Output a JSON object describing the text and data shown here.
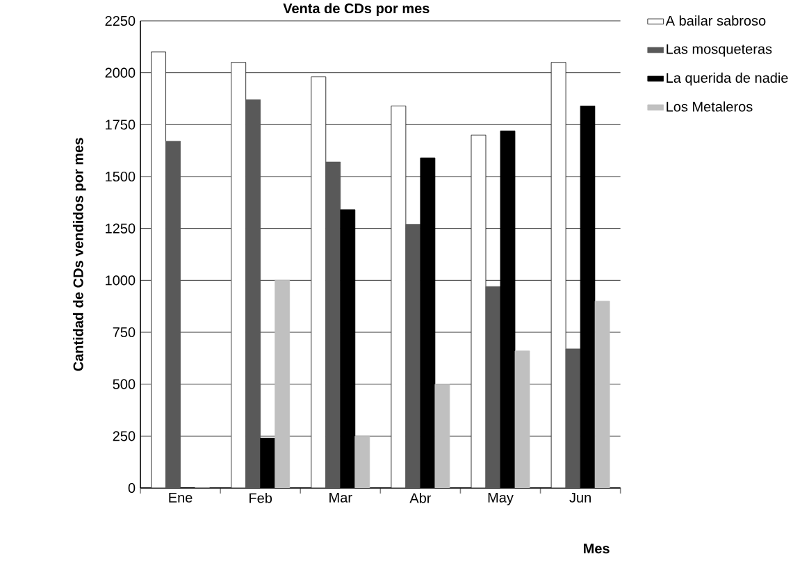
{
  "chart_data": {
    "type": "bar",
    "title": "Venta de CDs por mes",
    "xlabel": "Mes",
    "ylabel": "Cantidad de CDs vendidos por mes",
    "categories": [
      "Ene",
      "Feb",
      "Mar",
      "Abr",
      "May",
      "Jun"
    ],
    "series": [
      {
        "name": "A bailar sabroso",
        "color": "#ffffff",
        "values": [
          2100,
          2050,
          1980,
          1840,
          1700,
          2050
        ]
      },
      {
        "name": "Las mosqueteras",
        "color": "#595959",
        "values": [
          1670,
          1870,
          1570,
          1270,
          970,
          670
        ]
      },
      {
        "name": "La querida de nadie",
        "color": "#000000",
        "values": [
          0,
          240,
          1340,
          1590,
          1720,
          1840
        ]
      },
      {
        "name": "Los Metaleros",
        "color": "#c0c0c0",
        "values": [
          0,
          1000,
          250,
          500,
          660,
          900
        ]
      }
    ],
    "ylim": [
      0,
      2250
    ],
    "yticks": [
      0,
      250,
      500,
      750,
      1000,
      1250,
      1500,
      1750,
      2000,
      2250
    ],
    "grid": "y",
    "legend": "right"
  }
}
